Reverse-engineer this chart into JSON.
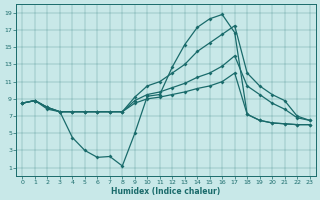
{
  "xlabel": "Humidex (Indice chaleur)",
  "bg_color": "#c8e8e8",
  "line_color": "#1a6b6b",
  "xlim": [
    -0.5,
    23.5
  ],
  "ylim": [
    0,
    20
  ],
  "xticks": [
    0,
    1,
    2,
    3,
    4,
    5,
    6,
    7,
    8,
    9,
    10,
    11,
    12,
    13,
    14,
    15,
    16,
    17,
    18,
    19,
    20,
    21,
    22,
    23
  ],
  "yticks": [
    1,
    3,
    5,
    7,
    9,
    11,
    13,
    15,
    17,
    19
  ],
  "line1_x": [
    0,
    1,
    2,
    3,
    4,
    5,
    6,
    7,
    8,
    9,
    10,
    11,
    12,
    13,
    14,
    15,
    16,
    17,
    18,
    19,
    20,
    21,
    22,
    23
  ],
  "line1_y": [
    8.5,
    8.8,
    7.8,
    7.5,
    4.5,
    3.0,
    2.2,
    2.3,
    1.2,
    5.0,
    9.3,
    9.5,
    12.7,
    15.3,
    17.3,
    18.3,
    18.8,
    16.7,
    7.2,
    6.5,
    6.2,
    6.1,
    6.0,
    6.0
  ],
  "line2_x": [
    0,
    1,
    2,
    3,
    4,
    5,
    6,
    7,
    8,
    9,
    10,
    11,
    12,
    13,
    14,
    15,
    16,
    17,
    18,
    19,
    20,
    21,
    22,
    23
  ],
  "line2_y": [
    8.5,
    8.8,
    8.0,
    7.5,
    7.5,
    7.5,
    7.5,
    7.5,
    7.5,
    8.5,
    9.0,
    9.2,
    9.5,
    9.8,
    10.2,
    10.5,
    11.0,
    12.0,
    7.2,
    6.5,
    6.2,
    6.1,
    6.0,
    6.0
  ],
  "line3_x": [
    0,
    1,
    2,
    3,
    4,
    5,
    6,
    7,
    8,
    9,
    10,
    11,
    12,
    13,
    14,
    15,
    16,
    17,
    18,
    19,
    20,
    21,
    22,
    23
  ],
  "line3_y": [
    8.5,
    8.8,
    8.0,
    7.5,
    7.5,
    7.5,
    7.5,
    7.5,
    7.5,
    8.8,
    9.5,
    9.8,
    10.3,
    10.8,
    11.5,
    12.0,
    12.8,
    14.0,
    10.5,
    9.5,
    8.5,
    7.8,
    6.8,
    6.5
  ],
  "line4_x": [
    0,
    1,
    2,
    3,
    4,
    5,
    6,
    7,
    8,
    9,
    10,
    11,
    12,
    13,
    14,
    15,
    16,
    17,
    18,
    19,
    20,
    21,
    22,
    23
  ],
  "line4_y": [
    8.5,
    8.8,
    8.0,
    7.5,
    7.5,
    7.5,
    7.5,
    7.5,
    7.5,
    9.2,
    10.5,
    11.0,
    12.0,
    13.0,
    14.5,
    15.5,
    16.5,
    17.5,
    12.0,
    10.5,
    9.5,
    8.8,
    7.0,
    6.5
  ]
}
